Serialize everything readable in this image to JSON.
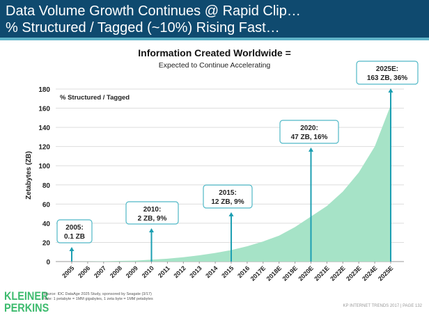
{
  "header": {
    "line1": "Data Volume Growth Continues @ Rapid Clip…",
    "line2": "% Structured / Tagged (~10%) Rising Fast…"
  },
  "chart_data": {
    "type": "area",
    "title": "Information Created Worldwide =",
    "subtitle": "Expected to Continue Accelerating",
    "ylabel": "Zetabytes (ZB)",
    "xlabel": "",
    "ylim": [
      0,
      180
    ],
    "yticks": [
      0,
      20,
      40,
      60,
      80,
      100,
      120,
      140,
      160,
      180
    ],
    "grid": true,
    "legend_note": "% Structured / Tagged",
    "categories": [
      "2005",
      "2006",
      "2007",
      "2008",
      "2009",
      "2010",
      "2011",
      "2012",
      "2013",
      "2014",
      "2015",
      "2016",
      "2017E",
      "2018E",
      "2019E",
      "2020E",
      "2021E",
      "2022E",
      "2023E",
      "2024E",
      "2025E"
    ],
    "values": [
      0.1,
      0.2,
      0.4,
      0.7,
      1,
      2,
      3,
      4.5,
      6.5,
      9,
      12,
      16,
      21,
      27,
      36,
      47,
      58,
      73,
      93,
      120,
      163
    ],
    "annotations": [
      {
        "index": 0,
        "line1": "2005:",
        "line2": "0.1 ZB"
      },
      {
        "index": 5,
        "line1": "2010:",
        "line2": "2 ZB, 9%"
      },
      {
        "index": 10,
        "line1": "2015:",
        "line2": "12 ZB, 9%"
      },
      {
        "index": 15,
        "line1": "2020:",
        "line2": "47 ZB, 16%"
      },
      {
        "index": 20,
        "line1": "2025E:",
        "line2": "163 ZB, 36%"
      }
    ],
    "colors": {
      "area": "#a6e3c7",
      "arrow": "#1d9fb2",
      "grid": "#dddddd"
    }
  },
  "footer": {
    "logo": "KLEINER PERKINS",
    "logo_line1": "KLEINER",
    "logo_line2": "PERKINS",
    "source": "Source: IDC DataAge 2025 Study, sponsored by Seagate (3/17)",
    "note": "Note: 1 petabyte = 1MM gigabytes, 1 zeta byte = 1MM petabytes",
    "page": "KP INTERNET TRENDS 2017  |  PAGE 132"
  }
}
